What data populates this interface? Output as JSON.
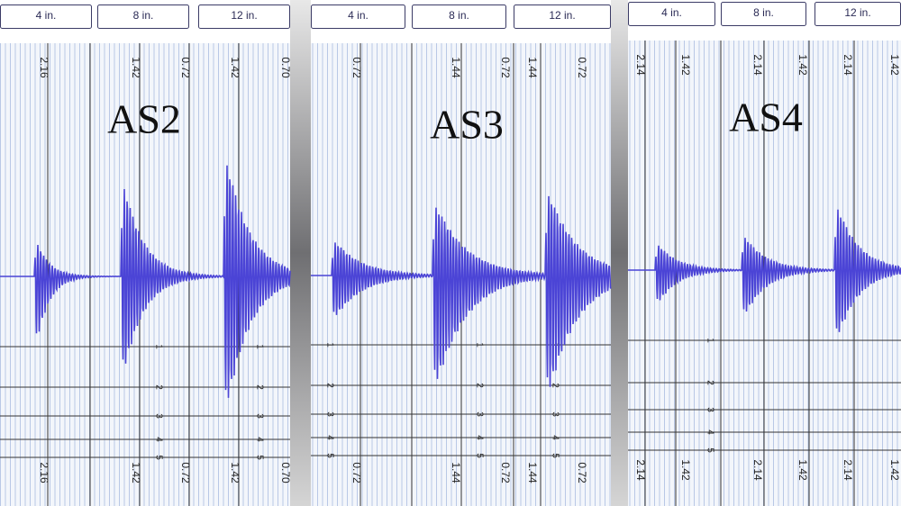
{
  "panels": [
    {
      "title": "AS2",
      "buttons": [
        "4 in.",
        "8 in.",
        "12 in."
      ],
      "labels": [
        "2.16",
        "1.42",
        "0.72",
        "1.42",
        "0.70"
      ],
      "scale": [
        "1",
        "2",
        "3",
        "4",
        "5"
      ]
    },
    {
      "title": "AS3",
      "buttons": [
        "4 in.",
        "8 in.",
        "12 in."
      ],
      "labels": [
        "0.72",
        "1.44",
        "0.72",
        "1.44",
        "0.72"
      ],
      "scale": [
        "1",
        "2",
        "3",
        "4",
        "5"
      ]
    },
    {
      "title": "AS4",
      "buttons": [
        "4 in.",
        "8 in.",
        "12 in."
      ],
      "labels": [
        "2.14",
        "1.42",
        "2.14",
        "1.42",
        "2.14",
        "1.42"
      ],
      "scale": [
        "1",
        "2",
        "3",
        "4",
        "5"
      ]
    }
  ]
}
